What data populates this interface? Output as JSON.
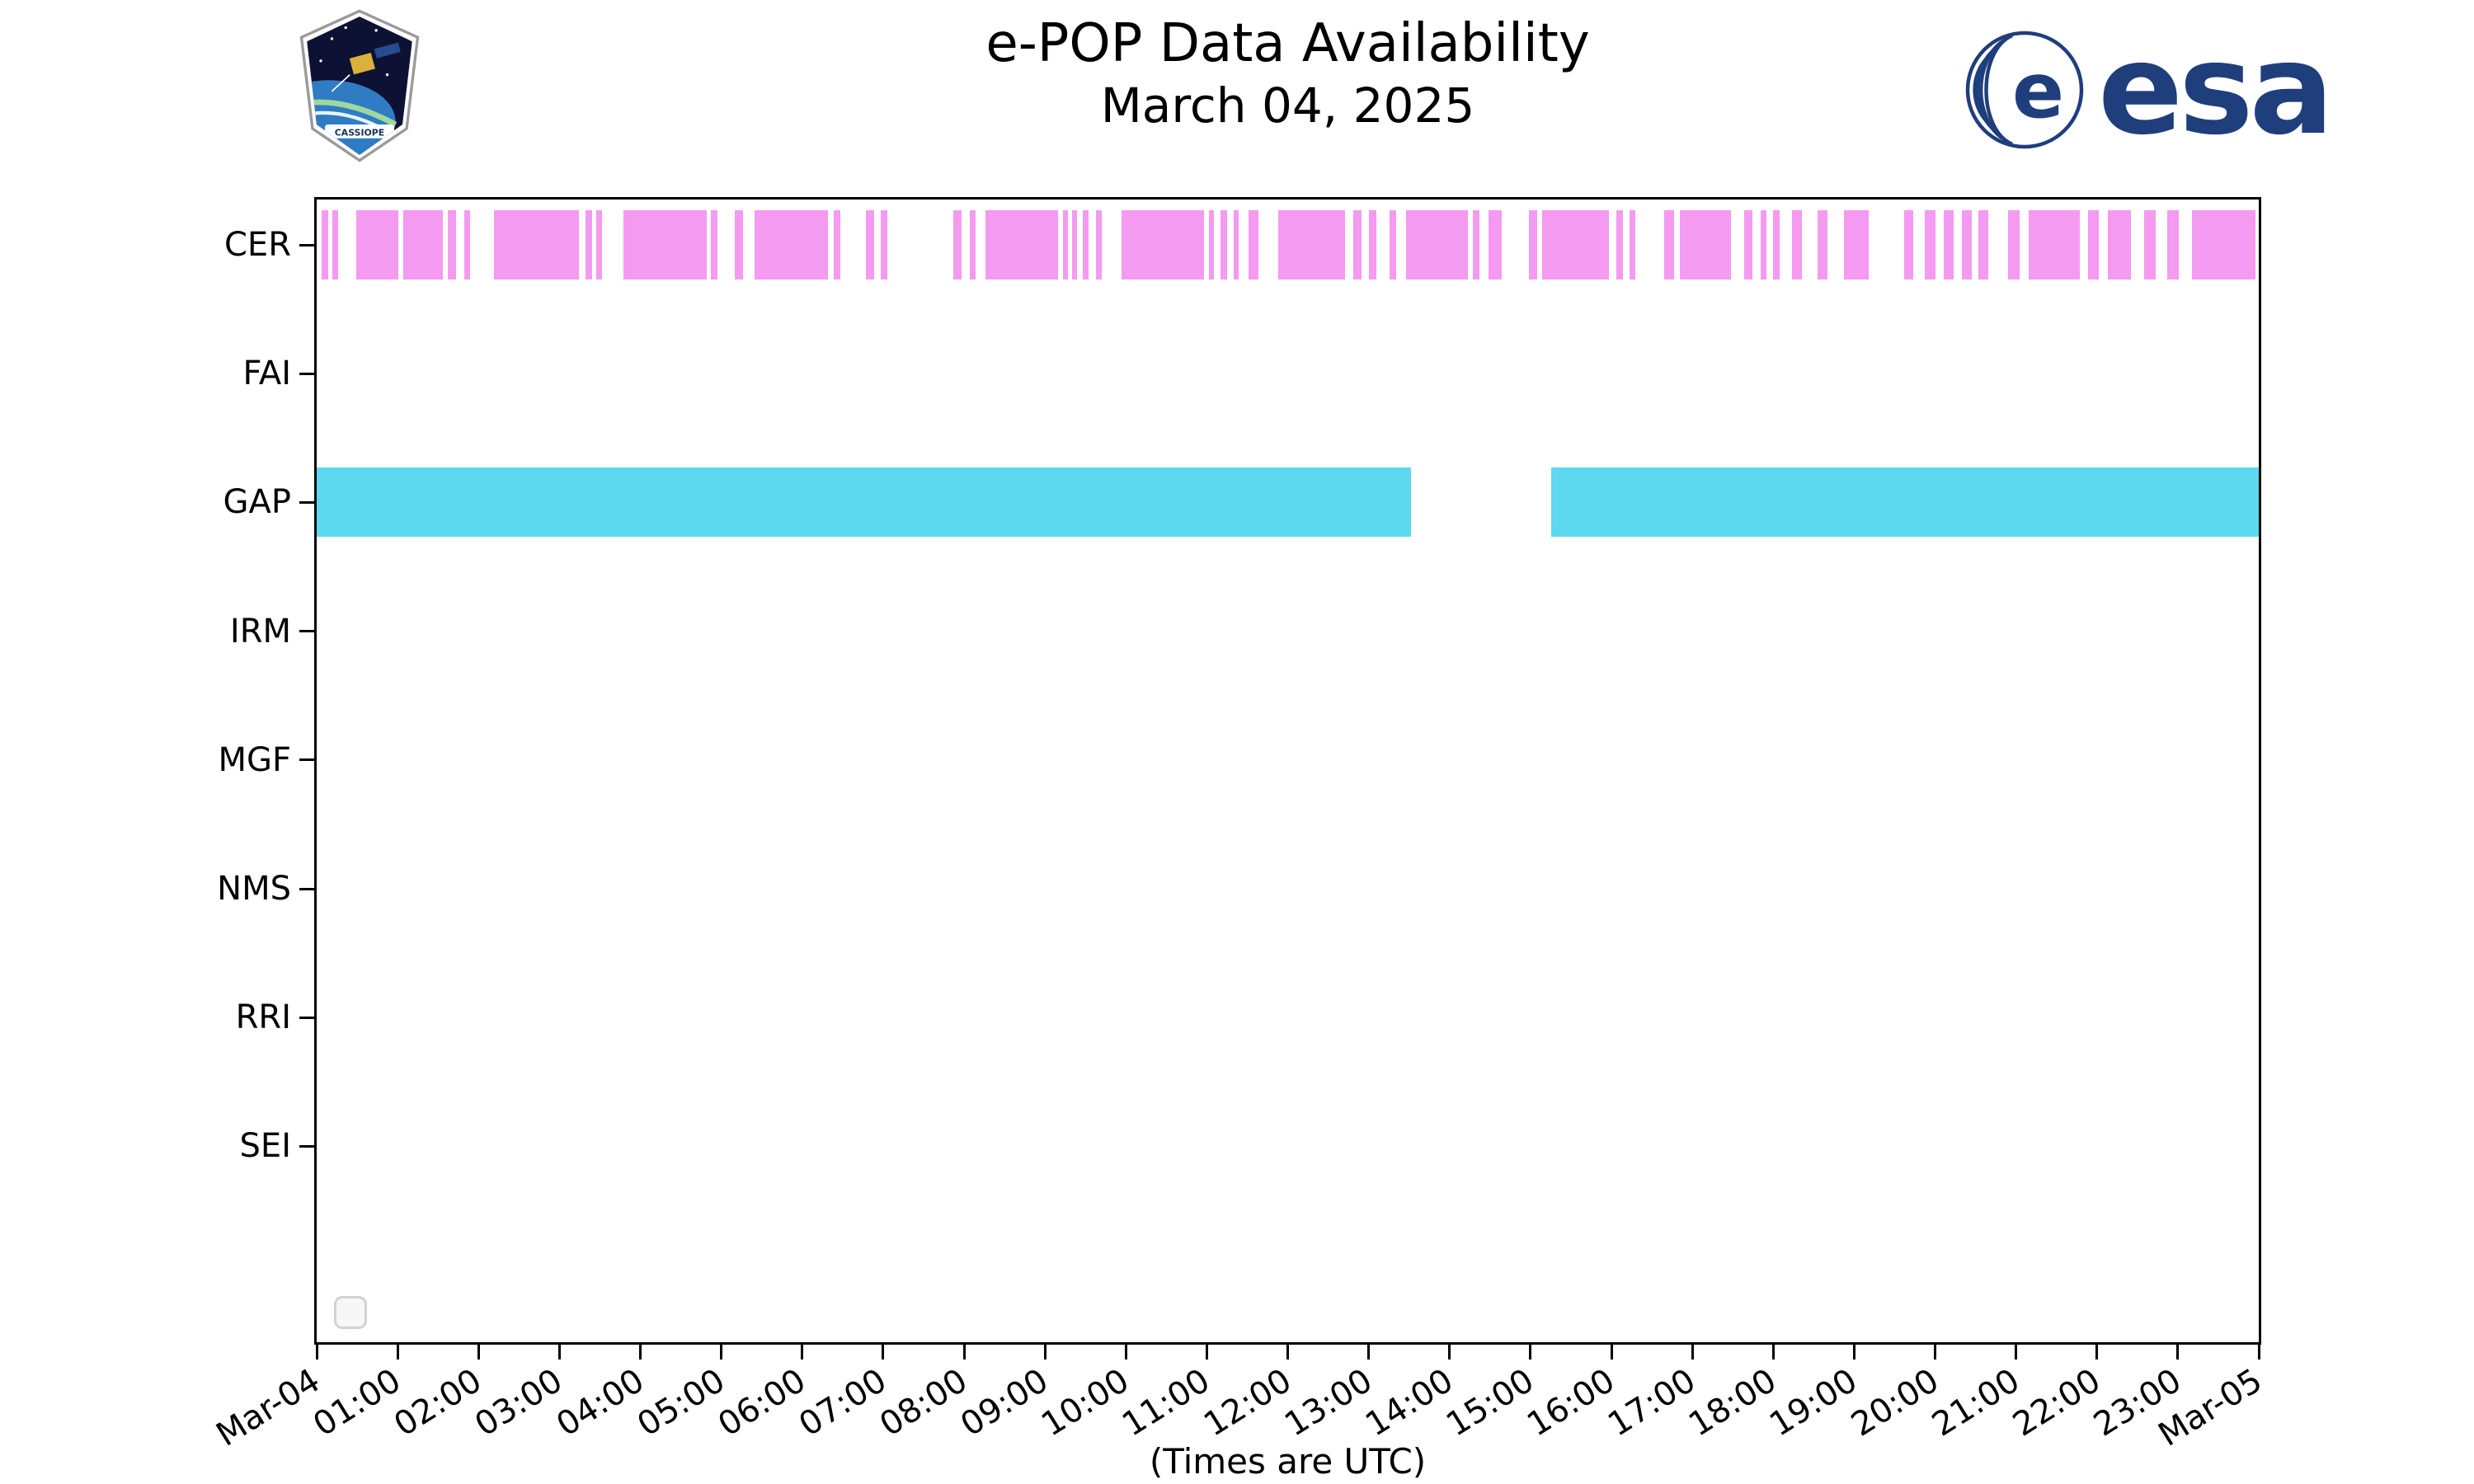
{
  "header": {
    "esa_wordmark": "esa",
    "cassiope_patch_text": "CASSIOPE"
  },
  "colors": {
    "cer_bar": "#f49af0",
    "gap_bar": "#5cd9ee",
    "esa_navy": "#1f3e7c",
    "axis": "#000000"
  },
  "chart_data": {
    "type": "timeline",
    "title": "e-POP Data Availability",
    "subtitle": "March 04, 2025",
    "xlabel": "(Times are UTC)",
    "x_start": 0,
    "x_end": 24,
    "x_tick_hours": [
      0,
      1,
      2,
      3,
      4,
      5,
      6,
      7,
      8,
      9,
      10,
      11,
      12,
      13,
      14,
      15,
      16,
      17,
      18,
      19,
      20,
      21,
      22,
      23,
      24
    ],
    "x_tick_labels": [
      "Mar-04",
      "01:00",
      "02:00",
      "03:00",
      "04:00",
      "05:00",
      "06:00",
      "07:00",
      "08:00",
      "09:00",
      "10:00",
      "11:00",
      "12:00",
      "13:00",
      "14:00",
      "15:00",
      "16:00",
      "17:00",
      "18:00",
      "19:00",
      "20:00",
      "21:00",
      "22:00",
      "23:00",
      "Mar-05"
    ],
    "rows": [
      "CER",
      "FAI",
      "GAP",
      "IRM",
      "MGF",
      "NMS",
      "RRI",
      "SEI"
    ],
    "empty_rows": [
      "FAI",
      "IRM",
      "MGF",
      "NMS",
      "RRI",
      "SEI"
    ],
    "series": [
      {
        "name": "CER",
        "color": "#f49af0",
        "intervals": [
          [
            0.06,
            0.14
          ],
          [
            0.19,
            0.27
          ],
          [
            0.49,
            1.01
          ],
          [
            1.07,
            1.56
          ],
          [
            1.62,
            1.72
          ],
          [
            1.82,
            1.9
          ],
          [
            2.19,
            3.24
          ],
          [
            3.32,
            3.4
          ],
          [
            3.45,
            3.53
          ],
          [
            3.79,
            4.82
          ],
          [
            4.87,
            4.95
          ],
          [
            5.17,
            5.27
          ],
          [
            5.41,
            6.32
          ],
          [
            6.39,
            6.47
          ],
          [
            6.79,
            6.89
          ],
          [
            6.97,
            7.05
          ],
          [
            7.87,
            7.97
          ],
          [
            8.07,
            8.14
          ],
          [
            8.27,
            9.16
          ],
          [
            9.22,
            9.28
          ],
          [
            9.33,
            9.4
          ],
          [
            9.47,
            9.54
          ],
          [
            9.63,
            9.7
          ],
          [
            9.95,
            10.97
          ],
          [
            11.03,
            11.09
          ],
          [
            11.17,
            11.25
          ],
          [
            11.33,
            11.39
          ],
          [
            11.52,
            11.64
          ],
          [
            11.88,
            12.71
          ],
          [
            12.81,
            12.91
          ],
          [
            13.0,
            13.1
          ],
          [
            13.26,
            13.34
          ],
          [
            13.46,
            14.23
          ],
          [
            14.29,
            14.37
          ],
          [
            14.48,
            14.64
          ],
          [
            14.98,
            15.08
          ],
          [
            15.14,
            15.97
          ],
          [
            16.06,
            16.14
          ],
          [
            16.22,
            16.3
          ],
          [
            16.65,
            16.77
          ],
          [
            16.85,
            17.48
          ],
          [
            17.64,
            17.74
          ],
          [
            17.84,
            17.92
          ],
          [
            18.0,
            18.08
          ],
          [
            18.23,
            18.35
          ],
          [
            18.55,
            18.67
          ],
          [
            18.87,
            19.18
          ],
          [
            19.62,
            19.73
          ],
          [
            19.87,
            20.01
          ],
          [
            20.11,
            20.23
          ],
          [
            20.33,
            20.45
          ],
          [
            20.54,
            20.66
          ],
          [
            20.9,
            21.04
          ],
          [
            21.16,
            21.79
          ],
          [
            21.89,
            22.02
          ],
          [
            22.14,
            22.42
          ],
          [
            22.58,
            22.73
          ],
          [
            22.87,
            23.01
          ],
          [
            23.17,
            23.96
          ]
        ]
      },
      {
        "name": "GAP",
        "color": "#5cd9ee",
        "intervals": [
          [
            0.0,
            13.52
          ],
          [
            15.26,
            24.0
          ]
        ]
      }
    ]
  }
}
